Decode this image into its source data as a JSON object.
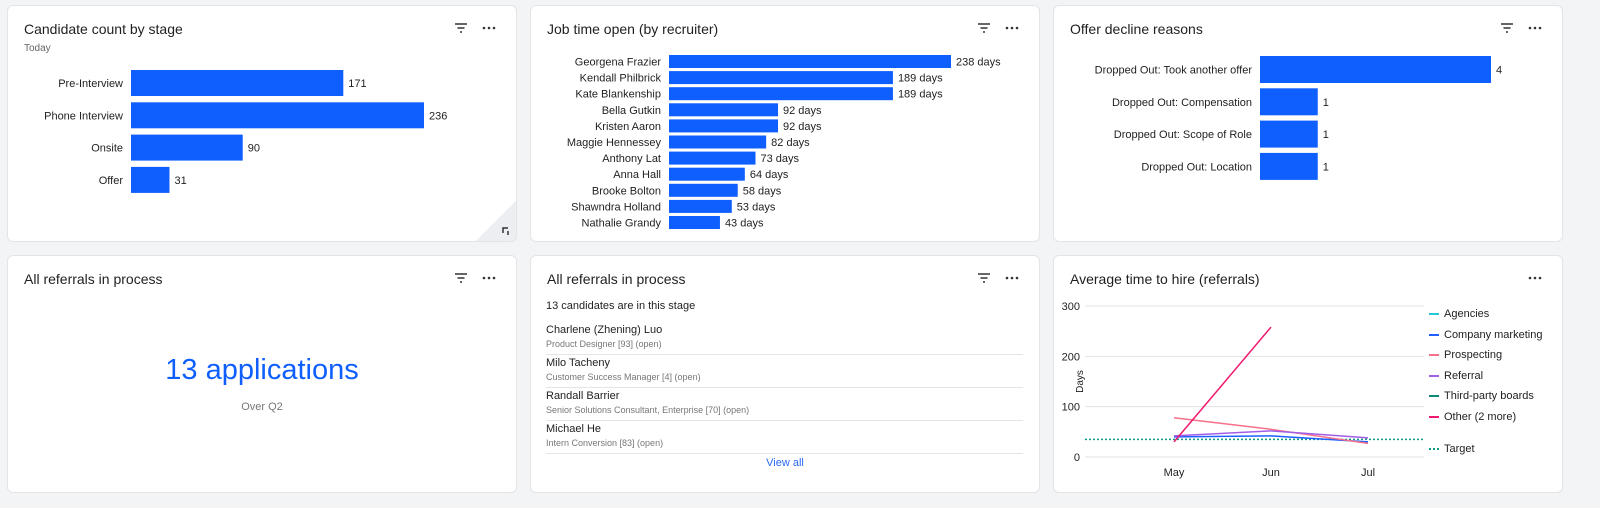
{
  "accent": "#0f5fff",
  "cards": {
    "stage": {
      "title": "Candidate count by stage",
      "subtitle": "Today"
    },
    "jobtime": {
      "title": "Job time open (by recruiter)"
    },
    "decline": {
      "title": "Offer decline reasons"
    },
    "referrals_count": {
      "title": "All referrals in process",
      "value": "13 applications",
      "subtitle": "Over Q2"
    },
    "referrals_list": {
      "title": "All referrals in process",
      "count_text": "13 candidates are in this stage",
      "items": [
        {
          "name": "Charlene (Zhening) Luo",
          "desc": "Product Designer [93] (open)"
        },
        {
          "name": "Milo Tacheny",
          "desc": "Customer Success Manager [4] (open)"
        },
        {
          "name": "Randall Barrier",
          "desc": "Senior Solutions Consultant, Enterprise [70] (open)"
        },
        {
          "name": "Michael He",
          "desc": "Intern Conversion [83] (open)"
        }
      ],
      "view_all": "View all"
    },
    "time_to_hire": {
      "title": "Average time to hire (referrals)"
    }
  },
  "chart_data": [
    {
      "type": "bar",
      "orientation": "horizontal",
      "categories": [
        "Pre-Interview",
        "Phone Interview",
        "Onsite",
        "Offer"
      ],
      "values": [
        171,
        236,
        90,
        31
      ],
      "labels": [
        "171",
        "236",
        "90",
        "31"
      ]
    },
    {
      "type": "bar",
      "orientation": "horizontal",
      "categories": [
        "Georgena Frazier",
        "Kendall Philbrick",
        "Kate Blankenship",
        "Bella Gutkin",
        "Kristen Aaron",
        "Maggie Hennessey",
        "Anthony Lat",
        "Anna Hall",
        "Brooke Bolton",
        "Shawndra Holland",
        "Nathalie Grandy"
      ],
      "values": [
        238,
        189,
        189,
        92,
        92,
        82,
        73,
        64,
        58,
        53,
        43
      ],
      "labels": [
        "238 days",
        "189 days",
        "189 days",
        "92 days",
        "92 days",
        "82 days",
        "73 days",
        "64 days",
        "58 days",
        "53 days",
        "43 days"
      ]
    },
    {
      "type": "bar",
      "orientation": "horizontal",
      "categories": [
        "Dropped Out: Took another offer",
        "Dropped Out: Compensation",
        "Dropped Out: Scope of Role",
        "Dropped Out: Location"
      ],
      "values": [
        4,
        1,
        1,
        1
      ],
      "labels": [
        "4",
        "1",
        "1",
        "1"
      ]
    },
    {
      "type": "line",
      "x": [
        "May",
        "Jun",
        "Jul"
      ],
      "ylabel": "Days",
      "ylim": [
        0,
        300
      ],
      "yticks": [
        "0",
        "100",
        "200",
        "300"
      ],
      "grid": true,
      "legend": "right",
      "series": [
        {
          "name": "Agencies",
          "color": "#22c8dc",
          "values": [
            null,
            null,
            null
          ]
        },
        {
          "name": "Company marketing",
          "color": "#1f5fff",
          "values": [
            40,
            42,
            30
          ]
        },
        {
          "name": "Prospecting",
          "color": "#f5708a",
          "values": [
            78,
            55,
            27
          ]
        },
        {
          "name": "Referral",
          "color": "#a35ee8",
          "values": [
            42,
            52,
            38
          ]
        },
        {
          "name": "Third-party boards",
          "color": "#0e8a7a",
          "values": [
            null,
            null,
            null
          ]
        },
        {
          "name": "Other (2 more)",
          "color": "#f0196e",
          "values": [
            30,
            258,
            null
          ]
        }
      ],
      "target": {
        "name": "Target",
        "value": 35,
        "color": "#0e9a8a"
      }
    }
  ]
}
